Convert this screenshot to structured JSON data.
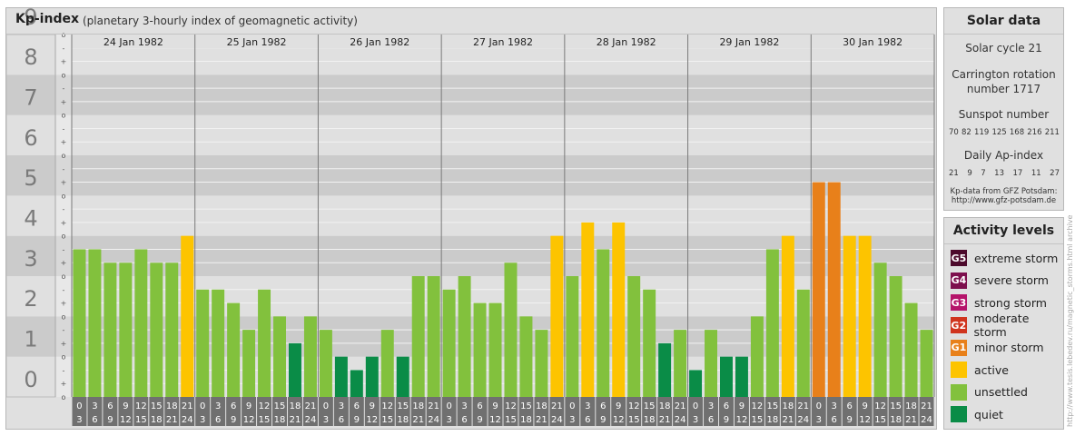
{
  "header": {
    "title": "Kp-index",
    "subtitle": "(planetary 3-hourly index of geomagnetic activity)"
  },
  "chart_data": {
    "type": "bar",
    "ylim": [
      0,
      9
    ],
    "y_ticks": [
      "0",
      "1",
      "2",
      "3",
      "4",
      "5",
      "6",
      "7",
      "8",
      "9"
    ],
    "minor_ticks": [
      "-",
      "o",
      "+"
    ],
    "days": [
      "24 Jan 1982",
      "25 Jan 1982",
      "26 Jan 1982",
      "27 Jan 1982",
      "28 Jan 1982",
      "29 Jan 1982",
      "30 Jan 1982"
    ],
    "intervals": [
      {
        "from": "0",
        "to": "3"
      },
      {
        "from": "3",
        "to": "6"
      },
      {
        "from": "6",
        "to": "9"
      },
      {
        "from": "9",
        "to": "12"
      },
      {
        "from": "12",
        "to": "15"
      },
      {
        "from": "15",
        "to": "18"
      },
      {
        "from": "18",
        "to": "21"
      },
      {
        "from": "21",
        "to": "24"
      }
    ],
    "values": [
      3.667,
      3.667,
      3.333,
      3.333,
      3.667,
      3.333,
      3.333,
      4.0,
      2.667,
      2.667,
      2.333,
      1.667,
      2.667,
      2.0,
      1.333,
      2.0,
      1.667,
      1.0,
      0.667,
      1.0,
      1.667,
      1.0,
      3.0,
      3.0,
      2.667,
      3.0,
      2.333,
      2.333,
      3.333,
      2.0,
      1.667,
      4.0,
      3.0,
      4.333,
      3.667,
      4.333,
      3.0,
      2.667,
      1.333,
      1.667,
      0.667,
      1.667,
      1.0,
      1.0,
      2.0,
      3.667,
      4.0,
      2.667,
      5.333,
      5.333,
      4.0,
      4.0,
      3.333,
      3.0,
      2.333,
      1.667
    ],
    "grid": true,
    "colors": {
      "quiet": "#0a8c47",
      "unsettled": "#82c13d",
      "active": "#fdc400",
      "minor": "#e8801a"
    }
  },
  "solar": {
    "title": "Solar data",
    "cycle": "Solar cycle 21",
    "carrington_line1": "Carrington rotation",
    "carrington_line2": "number 1717",
    "sunspot_label": "Sunspot number",
    "sunspot_values": [
      "70",
      "82",
      "119",
      "125",
      "168",
      "216",
      "211"
    ],
    "ap_label": "Daily Ap-index",
    "ap_values": [
      "21",
      "9",
      "7",
      "13",
      "17",
      "11",
      "27"
    ],
    "source_line1": "Kp-data from GFZ Potsdam:",
    "source_line2": "http://www.gfz-potsdam.de"
  },
  "activity": {
    "title": "Activity levels",
    "levels": [
      {
        "code": "G5",
        "label": "extreme storm",
        "color": "#4d0a2c"
      },
      {
        "code": "G4",
        "label": "severe storm",
        "color": "#7d0f4d"
      },
      {
        "code": "G3",
        "label": "strong storm",
        "color": "#b5146a"
      },
      {
        "code": "G2",
        "label": "moderate storm",
        "color": "#d0341e"
      },
      {
        "code": "G1",
        "label": "minor storm",
        "color": "#e8801a"
      },
      {
        "code": "",
        "label": "active",
        "color": "#fdc400"
      },
      {
        "code": "",
        "label": "unsettled",
        "color": "#82c13d"
      },
      {
        "code": "",
        "label": "quiet",
        "color": "#0a8c47"
      }
    ]
  },
  "watermark": "http://www.tesis.lebedev.ru/magnetic_storms.html archive"
}
